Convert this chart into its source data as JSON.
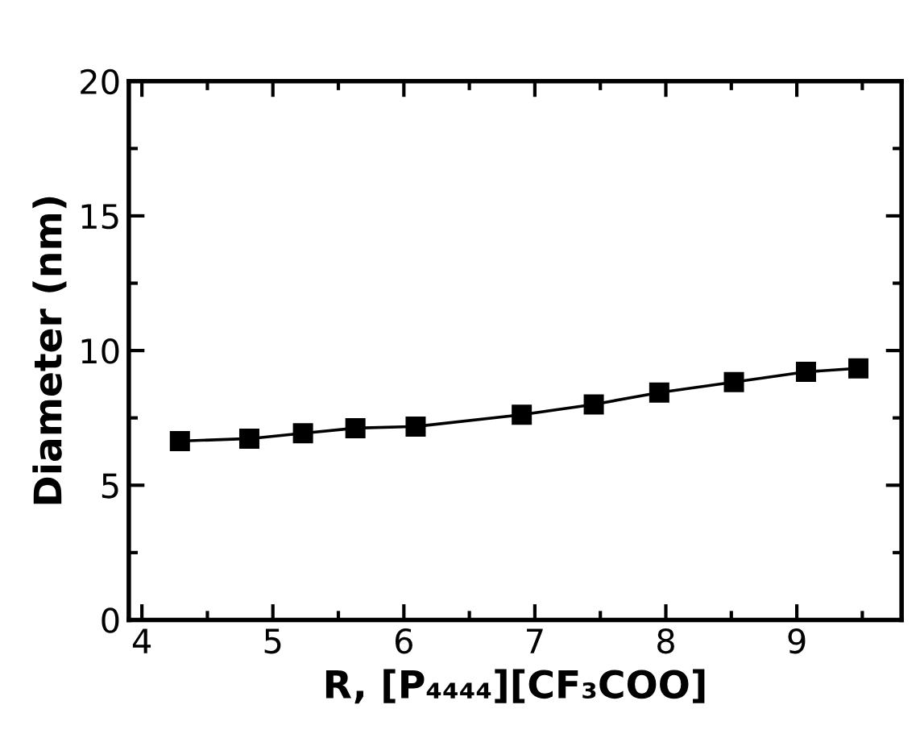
{
  "chart_data": {
    "type": "line",
    "xlabel": "R, [P₄₄₄₄][CF₃COO]",
    "ylabel": "Diameter (nm)",
    "x": [
      4.29,
      4.82,
      5.23,
      5.63,
      6.09,
      6.9,
      7.45,
      7.95,
      8.52,
      9.07,
      9.47
    ],
    "series": [
      {
        "color": "#000000",
        "values": [
          6.64,
          6.73,
          6.93,
          7.12,
          7.18,
          7.62,
          8.0,
          8.44,
          8.83,
          9.21,
          9.34
        ]
      }
    ],
    "marker": "square",
    "line_style": "solid",
    "grid": false,
    "xlim": [
      3.9,
      9.8
    ],
    "xticks": [
      4,
      5,
      6,
      7,
      8,
      9
    ],
    "ylim": [
      0,
      20
    ],
    "yticks": [
      0,
      5,
      10,
      15,
      20
    ]
  }
}
